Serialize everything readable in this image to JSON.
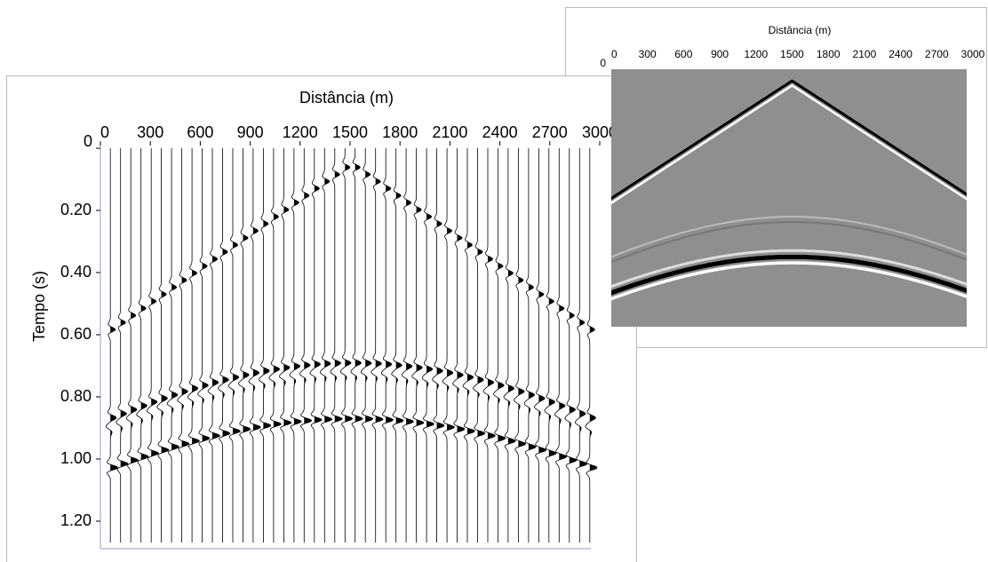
{
  "chart_data": [
    {
      "type": "wiggle",
      "title": "Distância (m)",
      "y_label": "Tempo (s)",
      "xlim": [
        0,
        3000
      ],
      "ylim": [
        0,
        1.3
      ],
      "xticks": [
        0,
        300,
        600,
        900,
        1200,
        1500,
        1800,
        2100,
        2400,
        2700,
        3000
      ],
      "yticks": [
        0,
        {
          "value": 0.2,
          "label": "0.20"
        },
        {
          "value": 0.4,
          "label": "0.40"
        },
        {
          "value": 0.6,
          "label": "0.60"
        },
        {
          "value": 0.8,
          "label": "0.80"
        },
        {
          "value": 1,
          "label": "1.00"
        },
        {
          "value": 1.2,
          "label": "1.20"
        }
      ]
    },
    {
      "type": "image",
      "title": "Distância (m)",
      "xlim": [
        0,
        3000
      ],
      "ylim": [
        0,
        1.2
      ],
      "xticks": [
        0,
        300,
        600,
        900,
        1200,
        1500,
        1800,
        2100,
        2400,
        2700,
        3000
      ],
      "yticks": [
        0
      ]
    }
  ]
}
